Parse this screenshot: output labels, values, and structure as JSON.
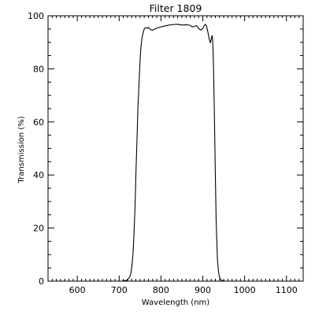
{
  "chart_data": {
    "type": "line",
    "title": "Filter  1809",
    "xlabel": "Wavelength (nm)",
    "ylabel": "Transmission (%)",
    "xlim": [
      530,
      1140
    ],
    "ylim": [
      0,
      100
    ],
    "x_major_ticks": [
      600,
      700,
      800,
      900,
      1000,
      1100
    ],
    "x_tick_labels": [
      "600",
      "700",
      "800",
      "900",
      "1000",
      "1100"
    ],
    "x_minor_step": 10,
    "y_major_ticks": [
      0,
      20,
      40,
      60,
      80,
      100
    ],
    "y_tick_labels": [
      "0",
      "20",
      "40",
      "60",
      "80",
      "100"
    ],
    "y_minor_step": 5,
    "grid": false,
    "series": [
      {
        "line_color": "#000000",
        "x": [
          705,
          715,
          720,
          725,
          728,
          730,
          733,
          735,
          738,
          740,
          743,
          745,
          748,
          750,
          752,
          755,
          758,
          760,
          763,
          765,
          768,
          770,
          775,
          780,
          785,
          790,
          795,
          800,
          810,
          820,
          830,
          840,
          850,
          860,
          870,
          875,
          880,
          885,
          890,
          895,
          900,
          903,
          906,
          909,
          912,
          915,
          918,
          920,
          922,
          923,
          924,
          925,
          926,
          928,
          930,
          932,
          935,
          938,
          940,
          943,
          945,
          950,
          955,
          960,
          970,
          980
        ],
        "y": [
          0,
          0.2,
          0.5,
          1.5,
          3,
          5,
          10,
          16,
          28,
          40,
          55,
          66,
          76,
          83,
          88,
          92,
          94,
          95,
          95.5,
          95.5,
          95.3,
          95.6,
          94.8,
          94.5,
          95,
          95.3,
          95.6,
          95.8,
          96.2,
          96.5,
          96.7,
          96.8,
          96.5,
          96.6,
          96.4,
          95.8,
          96,
          96.3,
          95.2,
          94.6,
          95.2,
          96.2,
          96.8,
          96,
          94,
          91.5,
          89.8,
          91,
          92.5,
          92,
          89,
          85,
          78,
          60,
          40,
          22,
          8,
          3,
          1.5,
          0.6,
          0.3,
          0.1,
          0,
          0,
          0,
          0
        ]
      }
    ]
  }
}
